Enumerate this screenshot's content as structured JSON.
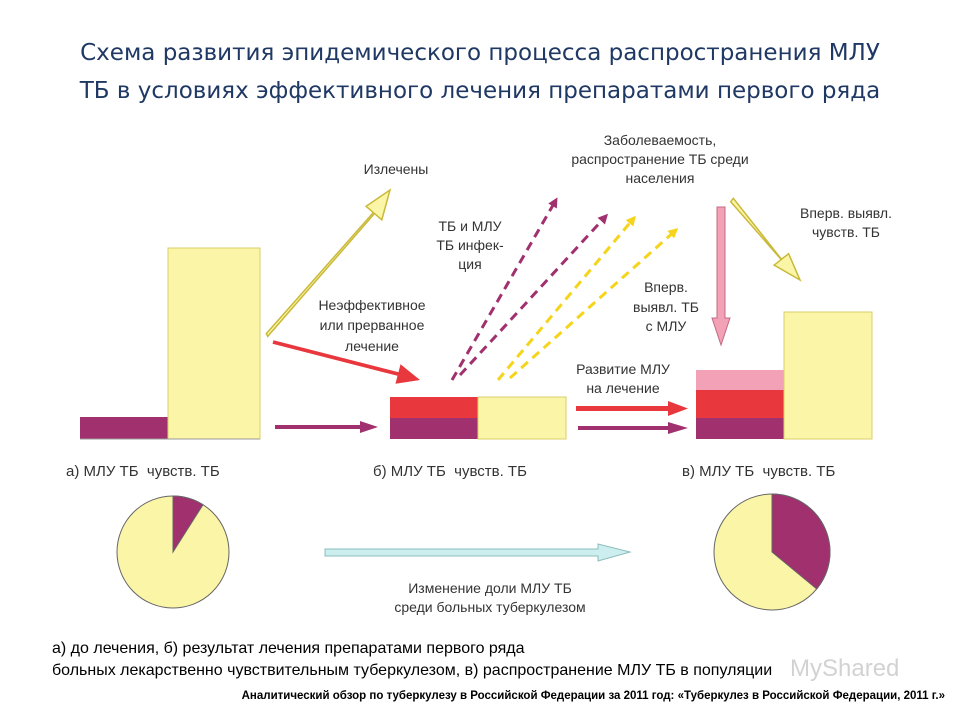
{
  "title_line1": "Схема развития эпидемического процесса распространения МЛУ",
  "title_line2": "ТБ в условиях эффективного лечения препаратами первого ряда",
  "labels": {
    "cured": "Излечены",
    "ineffective_1": "Неэффективное",
    "ineffective_2": "или прерванное",
    "ineffective_3": "лечение",
    "infection_1": "ТБ и МЛУ",
    "infection_2": "ТБ инфек-",
    "infection_3": "ция",
    "incidence_1": "Заболеваемость,",
    "incidence_2": "распространение ТБ среди",
    "incidence_3": "населения",
    "new_mdr_1": "Вперв.",
    "new_mdr_2": "выявл. ТБ",
    "new_mdr_3": "с МЛУ",
    "new_sens_1": "Вперв. выявл.",
    "new_sens_2": "чувств. ТБ",
    "mdr_dev_1": "Развитие МЛУ",
    "mdr_dev_2": "на лечение",
    "share_1": "Изменение доли МЛУ ТБ",
    "share_2": "среди больных туберкулезом"
  },
  "panel_labels": {
    "a": "а) МЛУ ТБ  чувств. ТБ",
    "b": "б) МЛУ ТБ  чувств. ТБ",
    "c": "в) МЛУ ТБ  чувств. ТБ"
  },
  "caption_line1": "а) до лечения, б) результат лечения препаратами первого ряда",
  "caption_line2": "больных лекарственно чувствительным туберкулезом, в) распространение МЛУ ТБ в популяции",
  "source": "Аналитический обзор по туберкулезу в Российской Федерации за 2011 год: «Туберкулез в Российской Федерации, 2011 г.»",
  "watermark": "MyShared",
  "pies": {
    "a_mdr_share": 0.09,
    "c_mdr_share": 0.36
  },
  "colors": {
    "sensitive": "#fbf5a7",
    "mdr_purple": "#a0306e",
    "red": "#e8373d",
    "pink": "#f2a1b6",
    "yellow_arrow": "#f5d41b",
    "cyan_arrow": "#cdeeee",
    "title": "#1f3864"
  }
}
